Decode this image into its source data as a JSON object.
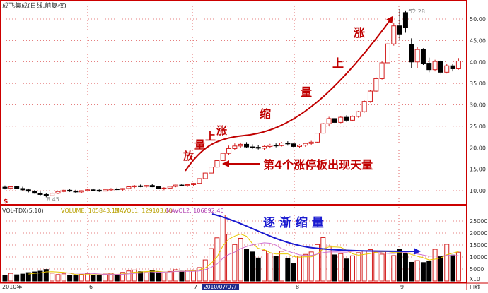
{
  "app": {
    "title": "成飞集成(日线,前复权)",
    "indicator_title": "VOL-TDX(5,10)"
  },
  "colors": {
    "up": "#d42020",
    "down": "#000000",
    "grid": "#cc0000",
    "ma1": "#e8c800",
    "ma2": "#d070d0",
    "annot_red": "#c00000",
    "annot_blue": "#1a1ad0"
  },
  "volume_legend": {
    "volume": "VOLUME: 105843.13",
    "mavol1": "MAVOL1: 129103.60",
    "mavol2": "MAVOL2: 106892.40"
  },
  "price_axis": [
    "50.00",
    "45.00",
    "40.00",
    "35.00",
    "30.00",
    "25.00",
    "20.00",
    "15.00",
    "10.00"
  ],
  "volume_axis": [
    "25000",
    "20000",
    "15000",
    "10000",
    "5000"
  ],
  "volume_unit": "X10",
  "period_label": "日线",
  "x_labels": {
    "year": "2010年",
    "m6": "6",
    "m7": "7",
    "selected_date": "2010/07/07/三",
    "m8": "8",
    "m9": "9"
  },
  "price_labels": {
    "low": "8.45",
    "high": "52.28"
  },
  "start_marker": "$",
  "annotations": {
    "fang": "放",
    "liang1": "量",
    "shang1": "上",
    "zhang1": "涨",
    "suo": "缩",
    "liang2": "量",
    "shang2": "上",
    "zhang2": "涨",
    "limit_up": "第4个涨停板出现天量",
    "gradual": "逐 渐 缩 量"
  },
  "chart_data": {
    "type": "candlestick",
    "title": "成飞集成(日线,前复权)",
    "y_ticks": [
      10,
      15,
      20,
      25,
      30,
      35,
      40,
      45,
      50
    ],
    "ohlc": [
      [
        10.8,
        11.2,
        10.3,
        10.6
      ],
      [
        10.6,
        11.0,
        10.2,
        10.9
      ],
      [
        10.9,
        11.1,
        10.4,
        10.5
      ],
      [
        10.5,
        10.9,
        10.0,
        10.2
      ],
      [
        10.2,
        10.5,
        9.6,
        9.9
      ],
      [
        9.9,
        10.1,
        9.3,
        9.4
      ],
      [
        9.4,
        9.8,
        8.9,
        9.1
      ],
      [
        9.1,
        9.4,
        8.45,
        8.8
      ],
      [
        8.8,
        9.6,
        8.7,
        9.4
      ],
      [
        9.4,
        10.0,
        9.2,
        9.8
      ],
      [
        9.8,
        10.3,
        9.6,
        10.1
      ],
      [
        10.1,
        10.4,
        9.7,
        9.9
      ],
      [
        9.9,
        10.2,
        9.5,
        9.7
      ],
      [
        9.7,
        10.1,
        9.5,
        10.0
      ],
      [
        10.0,
        10.4,
        9.8,
        10.2
      ],
      [
        10.2,
        10.5,
        9.9,
        10.1
      ],
      [
        10.1,
        10.3,
        9.7,
        9.9
      ],
      [
        9.9,
        10.3,
        9.8,
        10.2
      ],
      [
        10.2,
        10.6,
        10.0,
        10.4
      ],
      [
        10.4,
        10.7,
        10.1,
        10.3
      ],
      [
        10.3,
        10.6,
        10.0,
        10.5
      ],
      [
        10.5,
        11.0,
        10.3,
        10.9
      ],
      [
        10.9,
        11.3,
        10.6,
        11.1
      ],
      [
        11.1,
        11.4,
        10.8,
        11.0
      ],
      [
        11.0,
        11.3,
        10.7,
        11.2
      ],
      [
        11.2,
        11.5,
        10.8,
        10.9
      ],
      [
        10.9,
        11.1,
        10.3,
        10.5
      ],
      [
        10.5,
        10.8,
        10.1,
        10.6
      ],
      [
        10.6,
        11.1,
        10.4,
        11.0
      ],
      [
        11.0,
        11.4,
        10.8,
        11.3
      ],
      [
        11.3,
        11.6,
        11.0,
        11.2
      ],
      [
        11.2,
        11.5,
        10.9,
        11.4
      ],
      [
        11.4,
        11.8,
        11.1,
        11.7
      ],
      [
        11.7,
        12.9,
        11.6,
        12.8
      ],
      [
        12.8,
        14.2,
        12.7,
        14.1
      ],
      [
        14.1,
        15.6,
        14.0,
        15.5
      ],
      [
        15.5,
        17.1,
        15.4,
        17.0
      ],
      [
        17.0,
        18.8,
        16.9,
        18.7
      ],
      [
        18.7,
        20.5,
        18.3,
        19.8
      ],
      [
        19.8,
        21.0,
        19.4,
        20.4
      ],
      [
        20.4,
        21.2,
        19.9,
        20.8
      ],
      [
        20.8,
        21.3,
        20.0,
        20.2
      ],
      [
        20.2,
        20.8,
        19.7,
        20.1
      ],
      [
        20.1,
        20.6,
        19.6,
        19.9
      ],
      [
        19.9,
        20.5,
        19.5,
        20.3
      ],
      [
        20.3,
        20.9,
        20.0,
        20.6
      ],
      [
        20.6,
        21.0,
        20.1,
        20.5
      ],
      [
        20.5,
        21.3,
        20.3,
        21.1
      ],
      [
        21.1,
        21.5,
        20.5,
        20.9
      ],
      [
        20.9,
        21.2,
        20.1,
        20.3
      ],
      [
        20.3,
        20.8,
        19.9,
        20.6
      ],
      [
        20.6,
        21.1,
        20.2,
        21.0
      ],
      [
        21.0,
        21.6,
        20.6,
        21.3
      ],
      [
        21.3,
        23.5,
        21.2,
        23.4
      ],
      [
        23.4,
        25.8,
        23.3,
        25.6
      ],
      [
        25.6,
        27.2,
        25.1,
        26.8
      ],
      [
        26.8,
        27.0,
        25.4,
        25.9
      ],
      [
        25.9,
        27.3,
        25.7,
        27.1
      ],
      [
        27.1,
        27.6,
        26.0,
        26.4
      ],
      [
        26.4,
        27.5,
        26.2,
        27.3
      ],
      [
        27.3,
        28.6,
        27.0,
        28.4
      ],
      [
        28.4,
        31.0,
        28.2,
        30.8
      ],
      [
        30.8,
        33.5,
        30.5,
        33.2
      ],
      [
        33.2,
        36.4,
        33.0,
        36.1
      ],
      [
        36.1,
        40.2,
        35.9,
        39.8
      ],
      [
        39.8,
        44.6,
        39.5,
        44.2
      ],
      [
        44.2,
        49.0,
        43.8,
        48.4
      ],
      [
        48.4,
        52.28,
        45.0,
        46.5
      ],
      [
        51.5,
        52.0,
        46.8,
        48.0
      ],
      [
        44.0,
        45.5,
        38.5,
        40.0
      ],
      [
        40.0,
        43.5,
        38.6,
        42.9
      ],
      [
        42.9,
        43.2,
        39.3,
        39.7
      ],
      [
        39.7,
        41.0,
        37.6,
        38.2
      ],
      [
        38.2,
        40.5,
        37.8,
        40.1
      ],
      [
        40.1,
        40.4,
        37.1,
        37.6
      ],
      [
        37.6,
        39.5,
        37.3,
        39.1
      ],
      [
        39.1,
        39.6,
        37.8,
        38.4
      ],
      [
        38.4,
        40.9,
        38.2,
        40.2
      ]
    ],
    "volume": [
      2400,
      3200,
      2600,
      2900,
      3500,
      3800,
      4100,
      4800,
      3300,
      2700,
      3000,
      2500,
      2200,
      2800,
      3100,
      2600,
      2400,
      2900,
      3300,
      2700,
      3600,
      4200,
      4600,
      3900,
      3500,
      4300,
      3800,
      3400,
      4000,
      4700,
      4100,
      4500,
      4300,
      5600,
      8800,
      13500,
      18000,
      27500,
      19500,
      15200,
      17800,
      13300,
      12100,
      9600,
      12700,
      11600,
      10200,
      12400,
      9500,
      7200,
      10400,
      11100,
      12100,
      15200,
      18100,
      14600,
      10900,
      11400,
      9200,
      10500,
      11800,
      12600,
      13100,
      12000,
      11200,
      12400,
      10600,
      13100,
      11500,
      7800,
      8500,
      7700,
      8400,
      13200,
      10300,
      15300,
      10800,
      12000
    ],
    "legend": [
      "VOLUME: 105843.13",
      "MAVOL1: 129103.60",
      "MAVOL2: 106892.40"
    ]
  }
}
